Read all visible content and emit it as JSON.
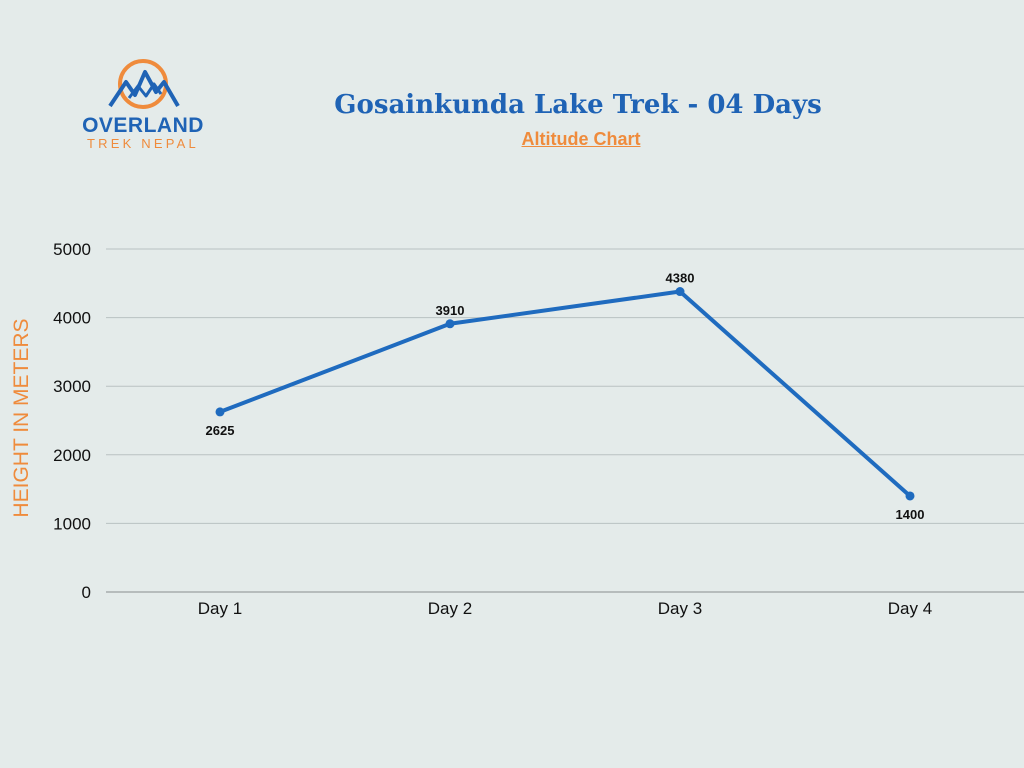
{
  "logo": {
    "name": "OVERLAND",
    "tagline": "TREK NEPAL"
  },
  "colors": {
    "primary_blue": "#1f63b5",
    "accent_orange": "#ef8b3c",
    "line": "#1f6bbf",
    "grid": "#b9c2c2",
    "background": "#e4ebea"
  },
  "chart_data": {
    "type": "line",
    "title": "Gosainkunda Lake Trek - 04 Days",
    "subtitle": "Altitude Chart",
    "xlabel": "",
    "ylabel": "HEIGHT IN METERS",
    "categories": [
      "Day 1",
      "Day 2",
      "Day 3",
      "Day 4"
    ],
    "series": [
      {
        "values": [
          2625,
          3910,
          4380,
          1400
        ]
      }
    ],
    "data_labels": [
      "2625",
      "3910",
      "4380",
      "1400"
    ],
    "data_label_positions": [
      "below",
      "above",
      "above",
      "below"
    ],
    "yticks": [
      0,
      1000,
      2000,
      3000,
      4000,
      5000
    ],
    "ytick_labels": [
      "0",
      "1000",
      "2000",
      "3000",
      "4000",
      "5000"
    ],
    "ylim": [
      0,
      5000
    ],
    "grid": true,
    "legend": "none"
  }
}
